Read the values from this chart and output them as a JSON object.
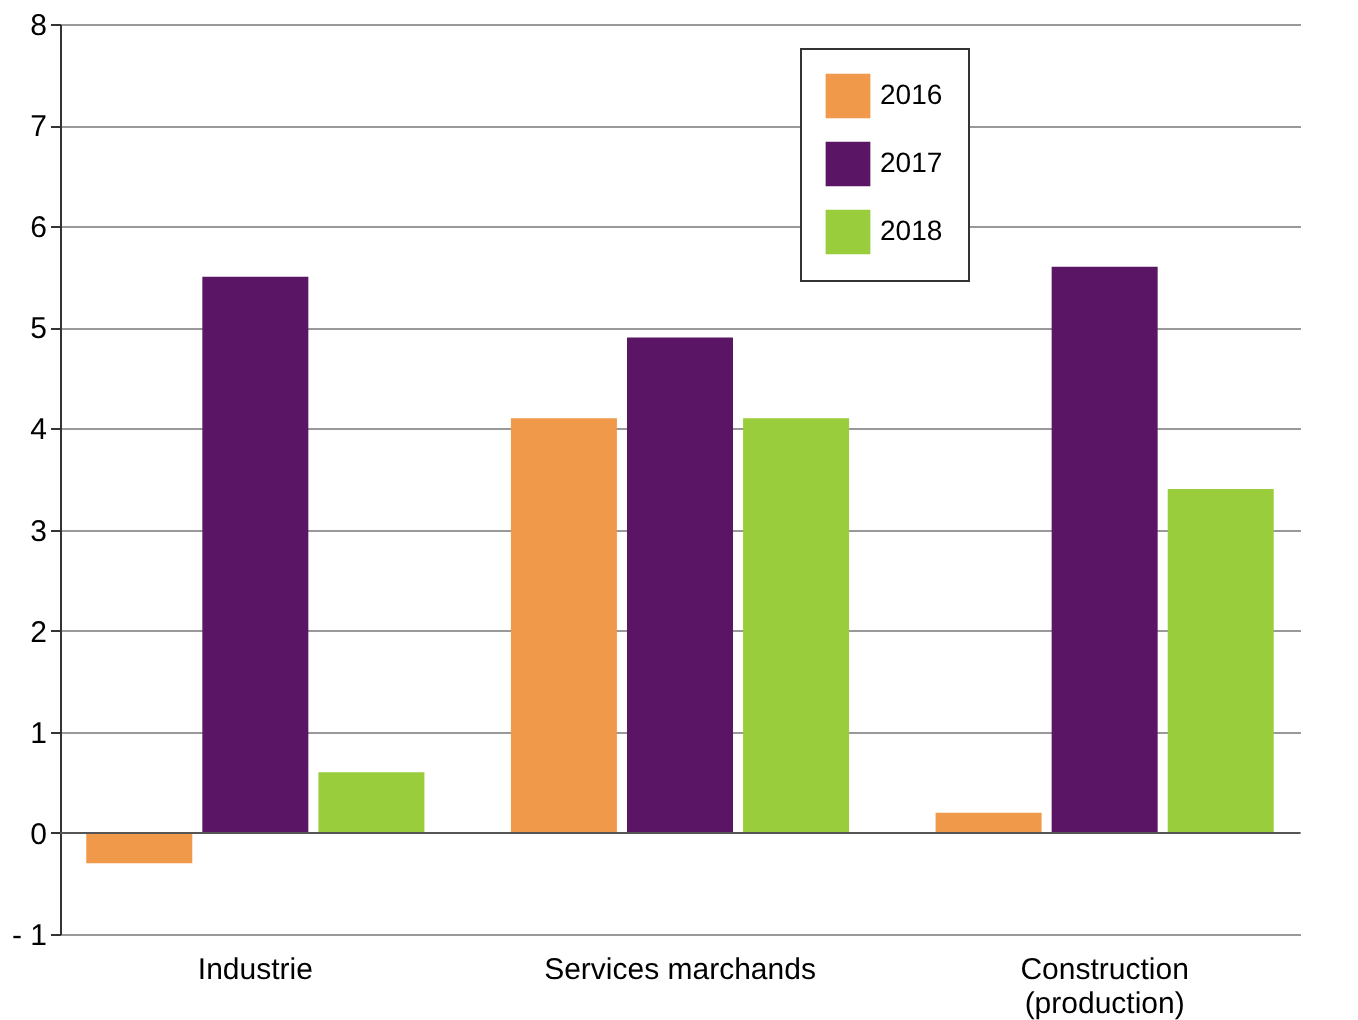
{
  "chart_data": {
    "type": "bar",
    "categories": [
      "Industrie",
      "Services marchands",
      "Construction\n(production)"
    ],
    "series": [
      {
        "name": "2016",
        "color": "#f0994a",
        "values": [
          -0.3,
          4.1,
          0.2
        ]
      },
      {
        "name": "2017",
        "color": "#5b1565",
        "values": [
          5.5,
          4.9,
          5.6
        ]
      },
      {
        "name": "2018",
        "color": "#9acd3c",
        "values": [
          0.6,
          4.1,
          3.4
        ]
      }
    ],
    "ylim": [
      -1,
      8
    ],
    "yticks": [
      {
        "value": -1,
        "label": "- 1"
      },
      0,
      1,
      2,
      3,
      4,
      5,
      6,
      7,
      8
    ],
    "grid": "y",
    "legend": "top right"
  }
}
